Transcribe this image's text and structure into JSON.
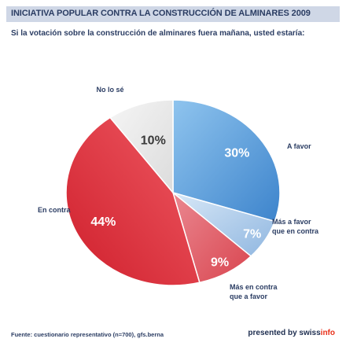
{
  "header": {
    "title": "INICIATIVA POPULAR CONTRA LA CONSTRUCCIÓN DE ALMINARES 2009"
  },
  "question": "Si la votación sobre la construcción de alminares fuera mañana, usted estaría:",
  "footer": {
    "source": "Fuente: cuestionario representativo (n=700), gfs.berna",
    "brand_prefix": "presented by swiss",
    "brand_accent": "info"
  },
  "colors": {
    "a_favor": "#4f9ad9",
    "mas_a_favor": "#a9c9ec",
    "mas_en_contra": "#e06670",
    "en_contra": "#e0333f",
    "no_lo_se": "#e9e9e9",
    "text": "#2b3d63"
  },
  "chart_data": {
    "type": "pie",
    "title": "INICIATIVA POPULAR CONTRA LA CONSTRUCCIÓN DE ALMINARES 2009",
    "slices": [
      {
        "label": "A favor",
        "value": 30,
        "value_label": "30%",
        "color": "#4f9ad9"
      },
      {
        "label": "Más a favor que en contra",
        "value": 7,
        "value_label": "7%",
        "color": "#a9c9ec"
      },
      {
        "label": "Más en contra que a favor",
        "value": 9,
        "value_label": "9%",
        "color": "#e06670"
      },
      {
        "label": "En contra",
        "value": 44,
        "value_label": "44%",
        "color": "#e0333f"
      },
      {
        "label": "No lo sé",
        "value": 10,
        "value_label": "10%",
        "color": "#e9e9e9"
      }
    ],
    "legend": "none",
    "labels_placement": "outside"
  }
}
